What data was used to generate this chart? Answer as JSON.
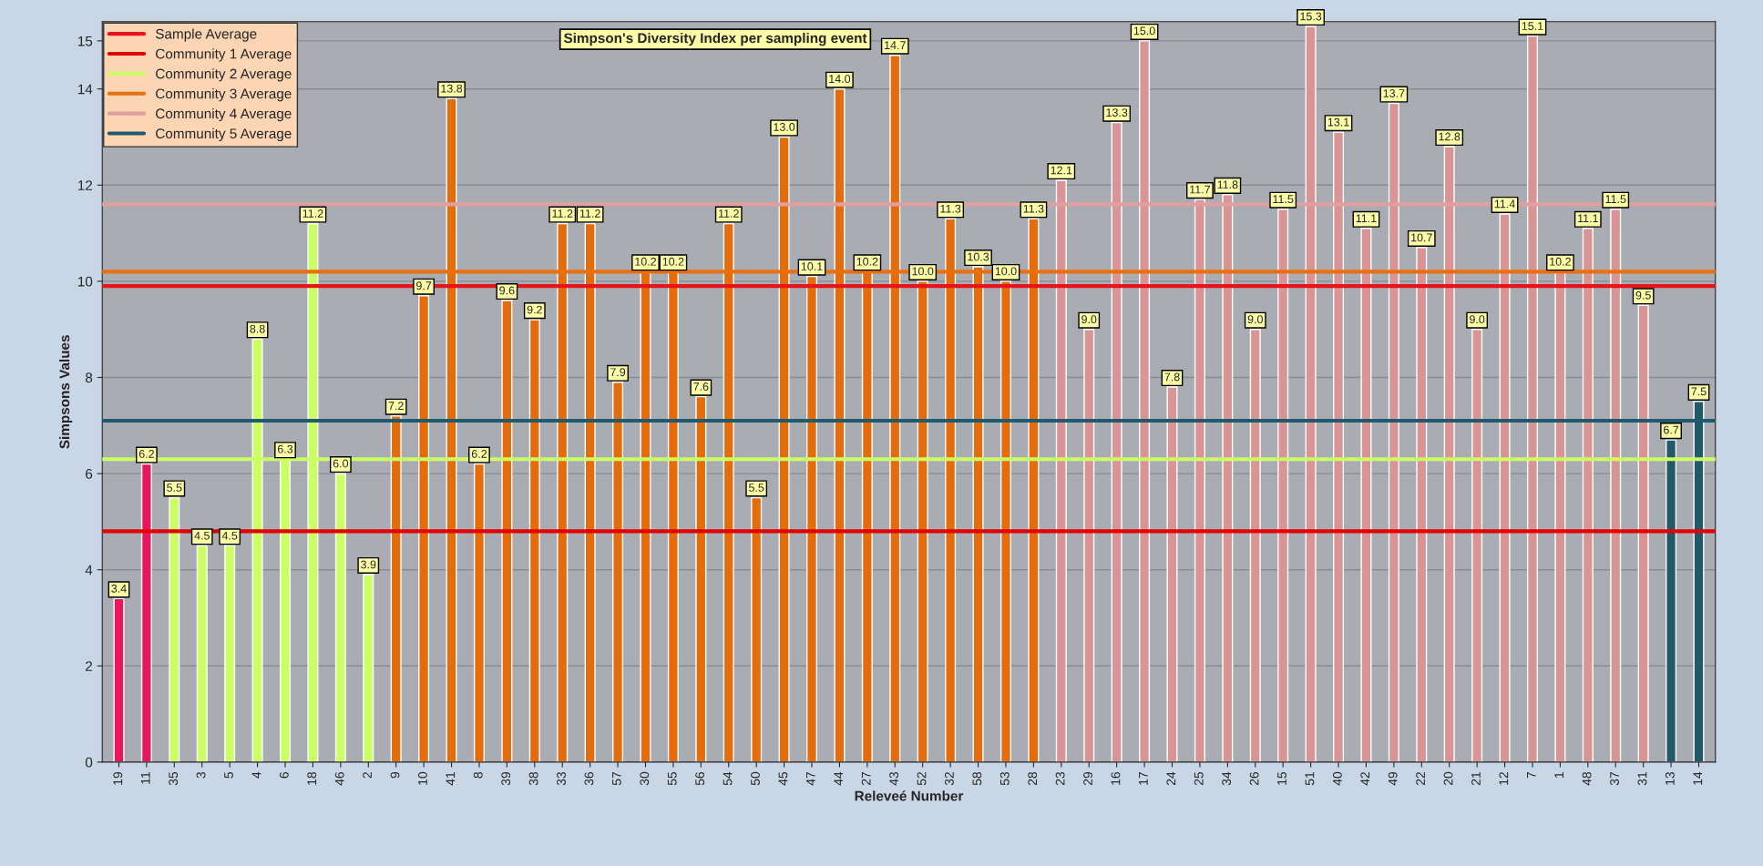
{
  "chart_data": {
    "type": "bar",
    "title": "Simpson's Diversity Index per sampling event",
    "xlabel": "Releveé Number",
    "ylabel": "Simpsons Values",
    "categories": [
      "19",
      "11",
      "35",
      "3",
      "5",
      "4",
      "6",
      "18",
      "46",
      "2",
      "9",
      "10",
      "41",
      "8",
      "39",
      "38",
      "33",
      "36",
      "57",
      "30",
      "55",
      "56",
      "54",
      "50",
      "45",
      "47",
      "44",
      "27",
      "43",
      "52",
      "32",
      "58",
      "53",
      "28",
      "23",
      "29",
      "16",
      "17",
      "24",
      "25",
      "34",
      "26",
      "15",
      "51",
      "40",
      "42",
      "49",
      "22",
      "20",
      "21",
      "12",
      "7",
      "1",
      "48",
      "37",
      "31",
      "13",
      "14"
    ],
    "values": [
      3.4,
      6.2,
      5.5,
      4.5,
      4.5,
      8.8,
      6.3,
      11.2,
      6.0,
      3.9,
      7.2,
      9.7,
      13.8,
      6.2,
      9.6,
      9.2,
      11.2,
      11.2,
      7.9,
      10.2,
      10.2,
      7.6,
      11.2,
      5.5,
      13.0,
      10.1,
      14.0,
      10.2,
      14.7,
      10.0,
      11.3,
      10.3,
      10.0,
      11.3,
      12.1,
      9.0,
      13.3,
      15.0,
      7.8,
      11.7,
      11.8,
      9.0,
      11.5,
      15.3,
      13.1,
      11.1,
      13.7,
      10.7,
      12.8,
      9.0,
      11.4,
      15.1,
      10.2,
      11.1,
      11.5,
      9.5,
      6.7,
      7.5
    ],
    "value_labels": [
      "3.4",
      "6.2",
      "5.5",
      "4.5",
      "4.5",
      "8.8",
      "6.3",
      "11.2",
      "6.0",
      "3.9",
      "7.2",
      "9.7",
      "13.8",
      "6.2",
      "9.6",
      "9.2",
      "11.2",
      "11.2",
      "7.9",
      "10.2",
      "10.2",
      "7.6",
      "11.2",
      "5.5",
      "13.0",
      "10.1",
      "14.0",
      "10.2",
      "14.7",
      "10.0",
      "11.3",
      "10.3",
      "10.0",
      "11.3",
      "12.1",
      "9.0",
      "13.3",
      "15.0",
      "7.8",
      "11.7",
      "11.8",
      "9.0",
      "11.5",
      "15.3",
      "13.1",
      "11.1",
      "13.7",
      "10.7",
      "12.8",
      "9.0",
      "11.4",
      "15.1",
      "10.2",
      "11.1",
      "11.5",
      "9.5",
      "6.7",
      "7.5"
    ],
    "colors": [
      "#e8175d",
      "#e8175d",
      "#ccff66",
      "#ccff66",
      "#ccff66",
      "#ccff66",
      "#ccff66",
      "#ccff66",
      "#ccff66",
      "#ccff66",
      "#e46c0a",
      "#e46c0a",
      "#e46c0a",
      "#e46c0a",
      "#e46c0a",
      "#e46c0a",
      "#e46c0a",
      "#e46c0a",
      "#e46c0a",
      "#e46c0a",
      "#e46c0a",
      "#e46c0a",
      "#e46c0a",
      "#e46c0a",
      "#e46c0a",
      "#e46c0a",
      "#e46c0a",
      "#e46c0a",
      "#e46c0a",
      "#e46c0a",
      "#e46c0a",
      "#e46c0a",
      "#e46c0a",
      "#e46c0a",
      "#d99594",
      "#d99594",
      "#d99594",
      "#d99594",
      "#d99594",
      "#d99594",
      "#d99594",
      "#d99594",
      "#d99594",
      "#d99594",
      "#d99594",
      "#d99594",
      "#d99594",
      "#d99594",
      "#d99594",
      "#d99594",
      "#d99594",
      "#d99594",
      "#d99594",
      "#d99594",
      "#d99594",
      "#d99594",
      "#215968",
      "#215968"
    ],
    "ylim": [
      0,
      15.4
    ],
    "yticks": [
      0,
      2,
      4,
      6,
      8,
      10,
      12,
      14,
      15
    ],
    "ref_lines": [
      {
        "axis": "y",
        "value": 9.9,
        "label": "Sample Average",
        "color": "#e8141c"
      },
      {
        "axis": "y",
        "value": 4.8,
        "label": "Community 1 Average",
        "color": "#e00000"
      },
      {
        "axis": "y",
        "value": 6.3,
        "label": "Community 2 Average",
        "color": "#ccff66"
      },
      {
        "axis": "y",
        "value": 10.2,
        "label": "Community 3 Average",
        "color": "#e8700f"
      },
      {
        "axis": "y",
        "value": 11.6,
        "label": "Community 4 Average",
        "color": "#e0a0a0"
      },
      {
        "axis": "y",
        "value": 7.1,
        "label": "Community 5 Average",
        "color": "#1f5a6e"
      }
    ],
    "grid": "y",
    "legend": "top left"
  }
}
